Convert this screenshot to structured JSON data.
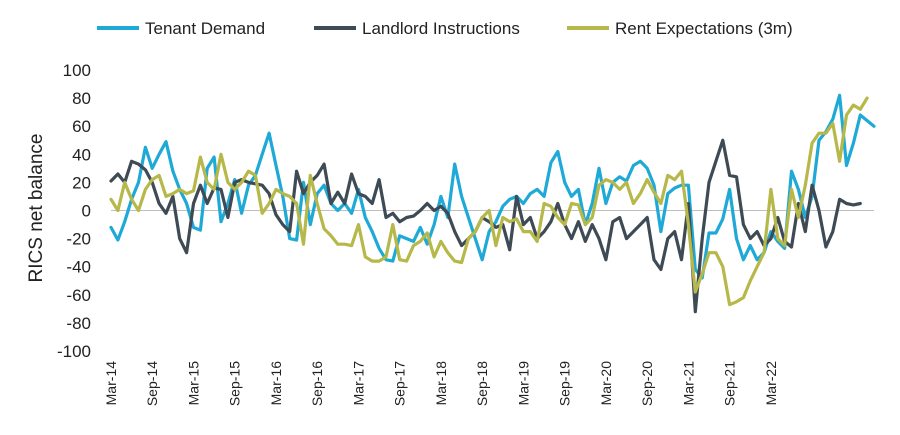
{
  "chart_data": {
    "type": "line",
    "ylabel": "RICS net balance",
    "ylim": [
      -100,
      100
    ],
    "yticks": [
      100,
      80,
      60,
      40,
      20,
      0,
      -20,
      -40,
      -60,
      -80,
      -100
    ],
    "x_start": "Mar-14",
    "x_end": "Mar-22",
    "xtick_labels": [
      "Mar-14",
      "Sep-14",
      "Mar-15",
      "Sep-15",
      "Mar-16",
      "Sep-16",
      "Mar-17",
      "Sep-17",
      "Mar-18",
      "Sep-18",
      "Mar-19",
      "Sep-19",
      "Mar-20",
      "Sep-20",
      "Mar-21",
      "Sep-21",
      "Mar-22"
    ],
    "legend_position": "top",
    "grid": false,
    "series": [
      {
        "name": "Tenant Demand",
        "color": "#1EA9D6",
        "values": [
          -12,
          -21,
          -8,
          8,
          20,
          45,
          30,
          40,
          49,
          28,
          15,
          5,
          -12,
          -14,
          30,
          38,
          -8,
          5,
          22,
          -2,
          18,
          25,
          40,
          55,
          32,
          10,
          -20,
          -21,
          20,
          -10,
          12,
          18,
          5,
          0,
          5,
          -2,
          15,
          -5,
          -15,
          -27,
          -35,
          -36,
          -18,
          -20,
          -22,
          -12,
          -24,
          -10,
          10,
          -5,
          33,
          10,
          -5,
          -20,
          -35,
          -15,
          -8,
          3,
          8,
          10,
          5,
          12,
          15,
          10,
          34,
          42,
          20,
          10,
          15,
          -10,
          5,
          30,
          5,
          20,
          24,
          21,
          32,
          35,
          30,
          18,
          -15,
          12,
          16,
          18,
          18,
          -42,
          -48,
          -16,
          -16,
          -6,
          15,
          -20,
          -35,
          -25,
          -35,
          -30,
          -15,
          -22,
          -27,
          28,
          15,
          -5,
          10,
          50,
          56,
          65,
          82,
          32,
          48,
          68,
          64,
          60
        ]
      },
      {
        "name": "Landlord Instructions",
        "color": "#3E4A54",
        "values": [
          21,
          26,
          20,
          35,
          33,
          29,
          20,
          5,
          -2,
          10,
          -20,
          -30,
          5,
          18,
          5,
          16,
          15,
          -5,
          20,
          22,
          20,
          19,
          18,
          12,
          -3,
          -10,
          -15,
          28,
          12,
          20,
          25,
          33,
          5,
          13,
          5,
          26,
          12,
          10,
          5,
          22,
          -5,
          -2,
          -8,
          -5,
          -4,
          0,
          5,
          0,
          3,
          -2,
          -15,
          -25,
          -20,
          -15,
          -5,
          -8,
          -12,
          -10,
          -28,
          10,
          -10,
          -5,
          -20,
          -15,
          -8,
          5,
          -10,
          -20,
          -8,
          -22,
          -10,
          -20,
          -35,
          -8,
          -5,
          -20,
          -15,
          -10,
          -5,
          -35,
          -42,
          -20,
          -15,
          -35,
          5,
          -72,
          -20,
          20,
          35,
          50,
          25,
          24,
          -10,
          -20,
          -15,
          -25,
          -20,
          -5,
          -22,
          -26,
          5,
          -15,
          18,
          0,
          -26,
          -15,
          8,
          5,
          4,
          5
        ]
      },
      {
        "name": "Rent Expectations (3m)",
        "color": "#B6B84A",
        "values": [
          8,
          0,
          20,
          8,
          0,
          15,
          22,
          25,
          10,
          12,
          15,
          12,
          14,
          38,
          20,
          15,
          40,
          20,
          15,
          20,
          28,
          25,
          -2,
          5,
          15,
          12,
          10,
          5,
          -24,
          25,
          5,
          -13,
          -18,
          -24,
          -24,
          -25,
          -10,
          -33,
          -36,
          -36,
          -33,
          -10,
          -35,
          -36,
          -25,
          -22,
          -16,
          -33,
          -22,
          -30,
          -36,
          -37,
          -20,
          -15,
          -5,
          0,
          -25,
          -5,
          -8,
          -6,
          -15,
          -15,
          -22,
          5,
          3,
          -5,
          -10,
          5,
          4,
          -10,
          -5,
          18,
          22,
          20,
          15,
          20,
          5,
          12,
          22,
          13,
          5,
          25,
          22,
          28,
          -10,
          -58,
          -45,
          -30,
          -30,
          -40,
          -67,
          -65,
          -62,
          -50,
          -40,
          -30,
          15,
          -20,
          -25,
          15,
          -5,
          18,
          48,
          55,
          55,
          62,
          35,
          68,
          75,
          72,
          80
        ]
      }
    ]
  }
}
